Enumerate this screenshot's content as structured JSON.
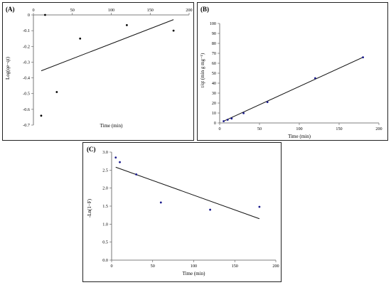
{
  "chart_data": [
    {
      "id": "A",
      "type": "scatter",
      "panel_label": "(A)",
      "xlabel": "Time (min)",
      "ylabel": "Log(qe−qt)",
      "xlim": [
        0,
        200
      ],
      "ylim": [
        -0.7,
        0
      ],
      "x_axis_position": "top",
      "x_ticks": [
        0,
        50,
        100,
        150,
        200
      ],
      "y_ticks": [
        0,
        -0.1,
        -0.2,
        -0.3,
        -0.4,
        -0.5,
        -0.6,
        -0.7
      ],
      "point_color": "#000000",
      "points": {
        "x": [
          10,
          15,
          30,
          60,
          120,
          180
        ],
        "y": [
          -0.64,
          0.0,
          -0.49,
          -0.15,
          -0.065,
          -0.1
        ]
      },
      "trendline": {
        "x": [
          10,
          180
        ],
        "y": [
          -0.355,
          -0.03
        ]
      },
      "grid": false
    },
    {
      "id": "B",
      "type": "scatter",
      "panel_label": "(B)",
      "xlabel": "Time (min)",
      "ylabel": "t/qt (min g mg⁻¹)",
      "xlim": [
        0,
        200
      ],
      "ylim": [
        0,
        100
      ],
      "x_axis_position": "bottom",
      "x_ticks": [
        0,
        50,
        100,
        150,
        200
      ],
      "y_ticks": [
        0,
        10,
        20,
        30,
        40,
        50,
        60,
        70,
        80,
        90,
        100
      ],
      "point_color": "#1a1a8c",
      "points": {
        "x": [
          5,
          10,
          15,
          30,
          60,
          120,
          180
        ],
        "y": [
          1.8,
          3.2,
          4.5,
          9.8,
          21,
          45,
          66
        ]
      },
      "trendline": {
        "x": [
          5,
          180
        ],
        "y": [
          1.8,
          66
        ]
      },
      "grid": false
    },
    {
      "id": "C",
      "type": "scatter",
      "panel_label": "(C)",
      "xlabel": "Time (min)",
      "ylabel": "-Ln(1−F)",
      "xlim": [
        0,
        200
      ],
      "ylim": [
        0,
        3.0
      ],
      "x_axis_position": "bottom",
      "x_ticks": [
        0,
        50,
        100,
        150,
        200
      ],
      "y_ticks": [
        0,
        0.5,
        1.0,
        1.5,
        2.0,
        2.5,
        3.0
      ],
      "y_tick_labels": [
        "0.0",
        "0.5",
        "1.0",
        "1.5",
        "2.0",
        "2.5",
        "3.0"
      ],
      "point_color": "#1a1a8c",
      "points": {
        "x": [
          5,
          10,
          30,
          60,
          120,
          180
        ],
        "y": [
          2.85,
          2.72,
          2.38,
          1.6,
          1.4,
          1.48
        ]
      },
      "trendline": {
        "x": [
          5,
          180
        ],
        "y": [
          2.58,
          1.15
        ]
      },
      "grid": false
    }
  ]
}
